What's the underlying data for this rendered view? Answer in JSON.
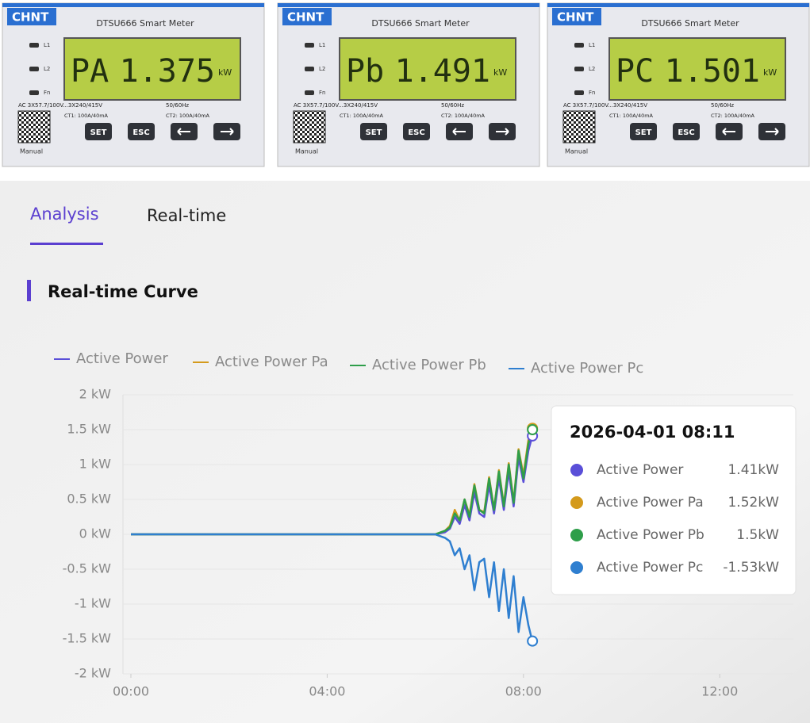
{
  "meters": [
    {
      "brand": "CHNT",
      "model": "DTSU666 Smart Meter",
      "indicators": [
        "L1",
        "L2",
        "Fn"
      ],
      "phase": "PA",
      "reading": "1.375",
      "unit": "kW",
      "spec": "AC 3X57.7/100V...3X240/415V",
      "frequency": "50/60Hz",
      "ct1": "CT1: 100A/40mA",
      "ct2": "CT2: 100A/40mA",
      "buttons": [
        "SET",
        "ESC"
      ],
      "qr_label": "Manual"
    },
    {
      "brand": "CHNT",
      "model": "DTSU666 Smart Meter",
      "indicators": [
        "L1",
        "L2",
        "Fn"
      ],
      "phase": "Pb",
      "reading": "1.491",
      "unit": "kW",
      "spec": "AC 3X57.7/100V...3X240/415V",
      "frequency": "50/60Hz",
      "ct1": "CT1: 100A/40mA",
      "ct2": "CT2: 100A/40mA",
      "buttons": [
        "SET",
        "ESC"
      ],
      "qr_label": "Manual"
    },
    {
      "brand": "CHNT",
      "model": "DTSU666 Smart Meter",
      "indicators": [
        "L1",
        "L2",
        "Fn"
      ],
      "phase": "PC",
      "reading": "1.501",
      "unit": "kW",
      "spec": "AC 3X57.7/100V...3X240/415V",
      "frequency": "50/60Hz",
      "ct1": "CT1: 100A/40mA",
      "ct2": "CT2: 100A/40mA",
      "buttons": [
        "SET",
        "ESC"
      ],
      "qr_label": "Manual"
    }
  ],
  "tabs": [
    "Analysis",
    "Real-time"
  ],
  "section_title": "Real-time Curve",
  "chart_data": {
    "type": "line",
    "x": [
      0,
      6.2,
      6.4,
      6.5,
      6.6,
      6.7,
      6.8,
      6.9,
      7.0,
      7.1,
      7.2,
      7.3,
      7.4,
      7.5,
      7.6,
      7.7,
      7.8,
      7.9,
      8.0,
      8.1,
      8.18
    ],
    "series": [
      {
        "name": "Active Power",
        "color": "#5a4fd8",
        "values": [
          0,
          0,
          0.03,
          0.08,
          0.25,
          0.15,
          0.42,
          0.2,
          0.6,
          0.3,
          0.25,
          0.7,
          0.3,
          0.8,
          0.35,
          0.9,
          0.4,
          1.1,
          0.75,
          1.2,
          1.41
        ]
      },
      {
        "name": "Active Power Pa",
        "color": "#d49a1c",
        "values": [
          0,
          0,
          0.05,
          0.12,
          0.35,
          0.2,
          0.5,
          0.28,
          0.72,
          0.35,
          0.32,
          0.82,
          0.36,
          0.92,
          0.42,
          1.02,
          0.47,
          1.22,
          0.85,
          1.35,
          1.52
        ]
      },
      {
        "name": "Active Power Pb",
        "color": "#2e9e4a",
        "values": [
          0,
          0,
          0.05,
          0.1,
          0.3,
          0.2,
          0.5,
          0.25,
          0.7,
          0.35,
          0.3,
          0.8,
          0.35,
          0.9,
          0.4,
          1.0,
          0.45,
          1.2,
          0.8,
          1.3,
          1.5
        ]
      },
      {
        "name": "Active Power Pc",
        "color": "#2f7fd0",
        "values": [
          0,
          0,
          -0.05,
          -0.1,
          -0.3,
          -0.2,
          -0.5,
          -0.3,
          -0.8,
          -0.4,
          -0.35,
          -0.9,
          -0.4,
          -1.1,
          -0.5,
          -1.2,
          -0.6,
          -1.4,
          -0.9,
          -1.3,
          -1.53
        ]
      }
    ],
    "xlim": [
      0,
      13.5
    ],
    "xticks": [
      {
        "value": 0,
        "label": "00:00"
      },
      {
        "value": 4,
        "label": "04:00"
      },
      {
        "value": 8,
        "label": "08:00"
      },
      {
        "value": 12,
        "label": "12:00"
      }
    ],
    "ylim": [
      -2,
      2
    ],
    "yticks": [
      {
        "value": 2,
        "label": "2 kW"
      },
      {
        "value": 1.5,
        "label": "1.5 kW"
      },
      {
        "value": 1,
        "label": "1 kW"
      },
      {
        "value": 0.5,
        "label": "0.5 kW"
      },
      {
        "value": 0,
        "label": "0 kW"
      },
      {
        "value": -0.5,
        "label": "-0.5 kW"
      },
      {
        "value": -1,
        "label": "-1 kW"
      },
      {
        "value": -1.5,
        "label": "-1.5 kW"
      },
      {
        "value": -2,
        "label": "-2 kW"
      }
    ],
    "grid": true,
    "tooltip": {
      "title": "2026-04-01 08:11",
      "values": [
        1.41,
        1.52,
        1.5,
        -1.53
      ],
      "value_labels": [
        "1.41kW",
        "1.52kW",
        "1.5kW",
        "-1.53kW"
      ]
    }
  }
}
